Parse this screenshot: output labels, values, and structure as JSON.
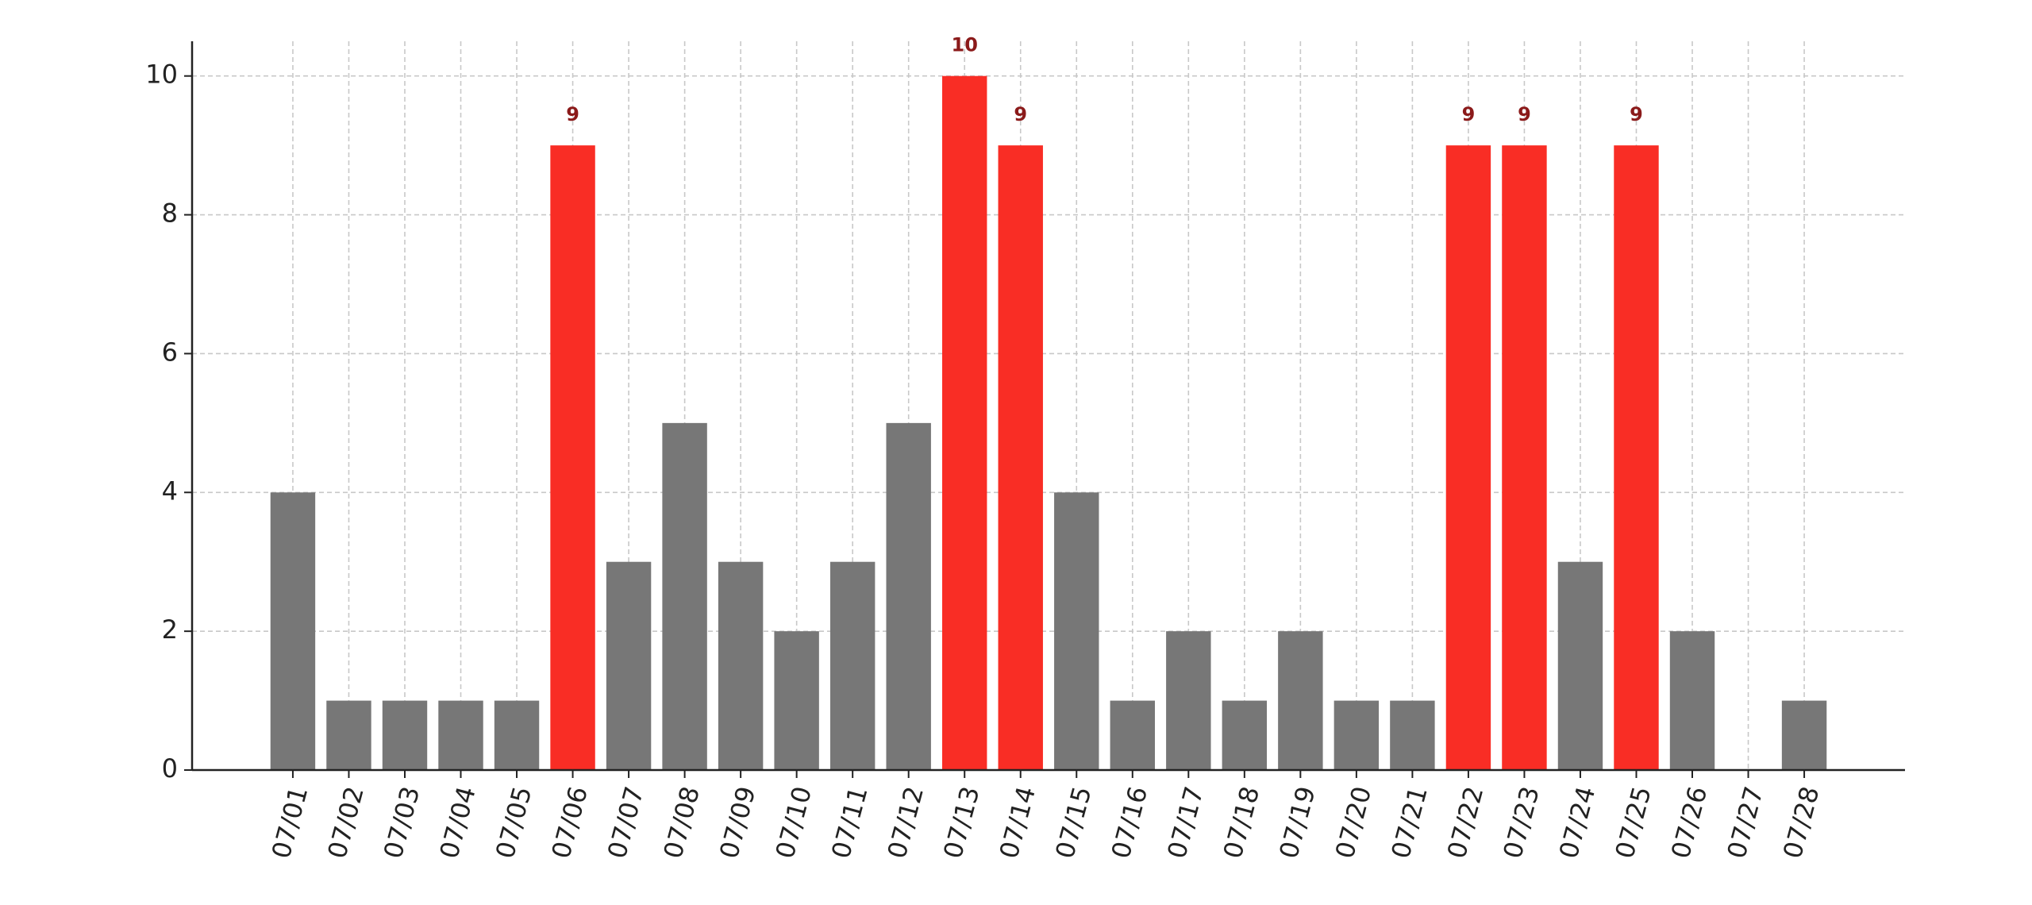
{
  "chart_data": {
    "type": "bar",
    "categories": [
      "07/01",
      "07/02",
      "07/03",
      "07/04",
      "07/05",
      "07/06",
      "07/07",
      "07/08",
      "07/09",
      "07/10",
      "07/11",
      "07/12",
      "07/13",
      "07/14",
      "07/15",
      "07/16",
      "07/17",
      "07/18",
      "07/19",
      "07/20",
      "07/21",
      "07/22",
      "07/23",
      "07/24",
      "07/25",
      "07/26",
      "07/27",
      "07/28"
    ],
    "values": [
      4,
      1,
      1,
      1,
      1,
      9,
      3,
      5,
      3,
      2,
      3,
      5,
      10,
      9,
      4,
      1,
      2,
      1,
      2,
      1,
      1,
      9,
      9,
      3,
      9,
      2,
      0,
      1
    ],
    "colors": [
      "#777777",
      "#777777",
      "#777777",
      "#777777",
      "#777777",
      "#f92d25",
      "#777777",
      "#777777",
      "#777777",
      "#777777",
      "#777777",
      "#777777",
      "#f92d25",
      "#f92d25",
      "#777777",
      "#777777",
      "#777777",
      "#777777",
      "#777777",
      "#777777",
      "#777777",
      "#f92d25",
      "#f92d25",
      "#777777",
      "#f92d25",
      "#777777",
      "#777777",
      "#777777"
    ],
    "highlight_color": "#f92d25",
    "value_label_color": "#8b1a1a",
    "ylim": [
      0,
      10.5
    ],
    "yticks": [
      0,
      2,
      4,
      6,
      8,
      10
    ],
    "grid": true
  }
}
